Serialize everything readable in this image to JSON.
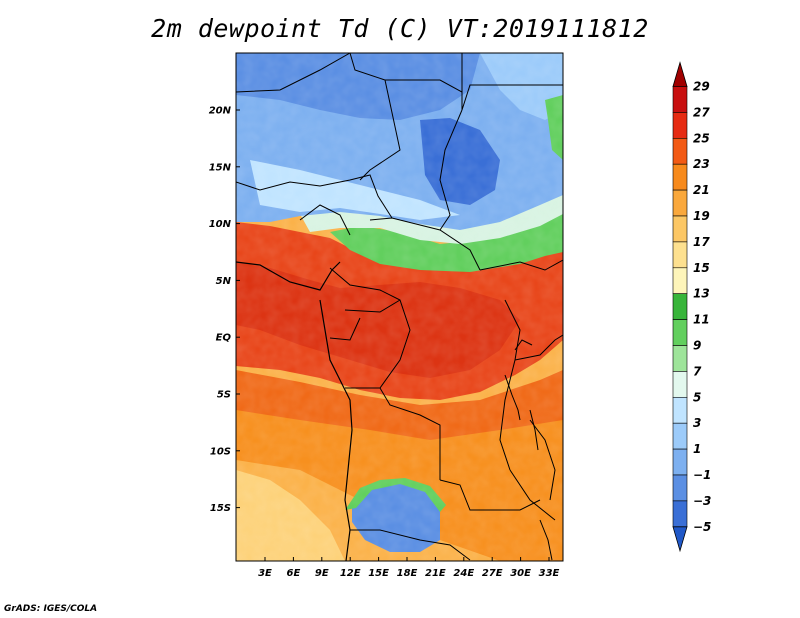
{
  "title": "2m dewpoint Td (C) VT:2019111812",
  "footer": "GrADS: IGES/COLA",
  "map": {
    "lat_labels": [
      "20N",
      "15N",
      "10N",
      "5N",
      "EQ",
      "5S",
      "10S",
      "15S"
    ],
    "lon_labels": [
      "3E",
      "6E",
      "9E",
      "12E",
      "15E",
      "18E",
      "21E",
      "24E",
      "27E",
      "30E",
      "33E"
    ],
    "lat_range": [
      -20,
      25
    ],
    "lon_range": [
      0,
      35
    ]
  },
  "colorbar": {
    "labels": [
      "29",
      "27",
      "25",
      "23",
      "21",
      "19",
      "17",
      "15",
      "13",
      "11",
      "9",
      "7",
      "5",
      "3",
      "1",
      "−1",
      "−3",
      "−5"
    ],
    "colors": [
      "#a00000",
      "#c80f0f",
      "#e62b12",
      "#f25a14",
      "#f78a1c",
      "#faa83c",
      "#fcc765",
      "#fde08f",
      "#fef5ba",
      "#38b53a",
      "#62cf5e",
      "#9ee49a",
      "#e3f8ee",
      "#c0e4ff",
      "#9ccbfa",
      "#7db0f0",
      "#5b8fe3",
      "#3a6fd6",
      "#2058c8"
    ]
  }
}
